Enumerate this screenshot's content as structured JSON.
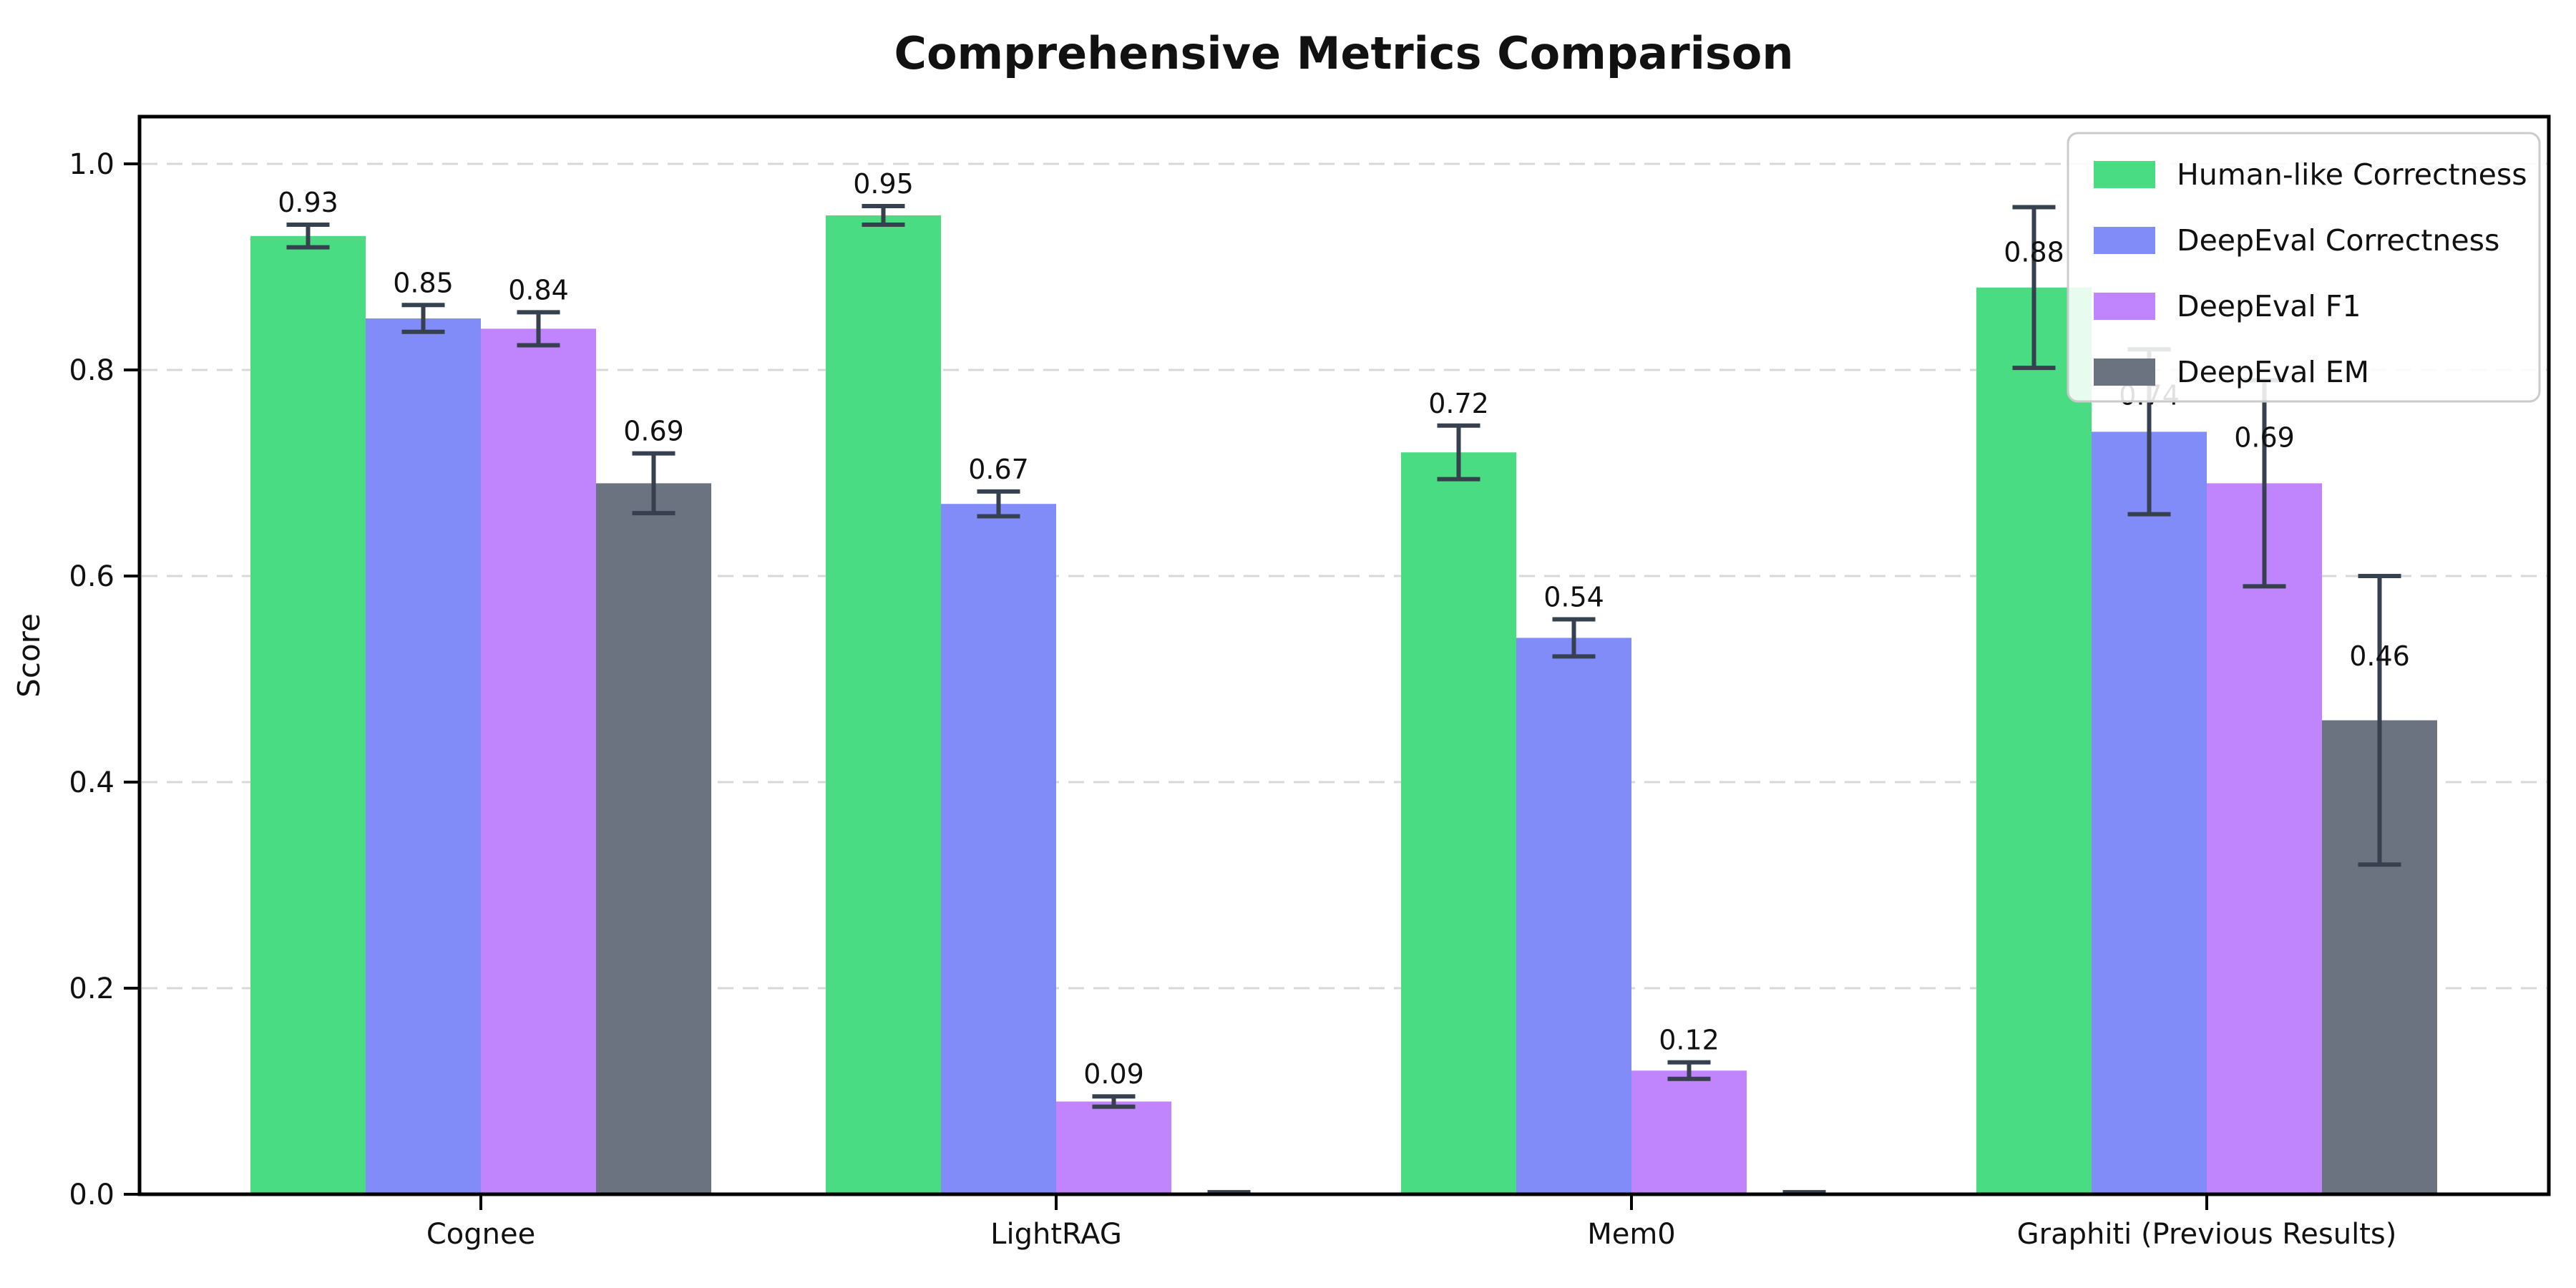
{
  "chart_data": {
    "type": "bar",
    "title": "Comprehensive Metrics Comparison",
    "ylabel": "Score",
    "xlabel": "",
    "categories": [
      "Cognee",
      "LightRAG",
      "Mem0",
      "Graphiti (Previous Results)"
    ],
    "series": [
      {
        "name": "Human-like Correctness",
        "color": "#4adc82",
        "values": [
          0.93,
          0.95,
          0.72,
          0.88
        ],
        "errors": [
          0.011,
          0.009,
          0.026,
          0.078
        ],
        "labels": [
          "0.93",
          "0.95",
          "0.72",
          "0.88"
        ]
      },
      {
        "name": "DeepEval Correctness",
        "color": "#818cf8",
        "values": [
          0.85,
          0.67,
          0.54,
          0.74
        ],
        "errors": [
          0.013,
          0.012,
          0.018,
          0.08
        ],
        "labels": [
          "0.85",
          "0.67",
          "0.54",
          "0.74"
        ]
      },
      {
        "name": "DeepEval F1",
        "color": "#c084fc",
        "values": [
          0.84,
          0.09,
          0.12,
          0.69
        ],
        "errors": [
          0.016,
          0.005,
          0.008,
          0.1
        ],
        "labels": [
          "0.84",
          "0.09",
          "0.12",
          "0.69"
        ]
      },
      {
        "name": "DeepEval EM",
        "color": "#6b7280",
        "values": [
          0.69,
          0.0,
          0.0,
          0.46
        ],
        "errors": [
          0.029,
          0.002,
          0.002,
          0.14
        ],
        "labels": [
          "0.69",
          "",
          "",
          "0.46"
        ]
      }
    ],
    "ylim": [
      0.0,
      1.046
    ],
    "yticks": [
      0.0,
      0.2,
      0.4,
      0.6,
      0.8,
      1.0
    ],
    "ytick_labels": [
      "0.0",
      "0.2",
      "0.4",
      "0.6",
      "0.8",
      "1.0"
    ],
    "grid": "horizontal dashed",
    "gridline_color": "#d8d8d8",
    "error_bar_color": "#36404f",
    "axis_color": "#000000",
    "legend_position": "upper right",
    "background": "#ffffff"
  }
}
